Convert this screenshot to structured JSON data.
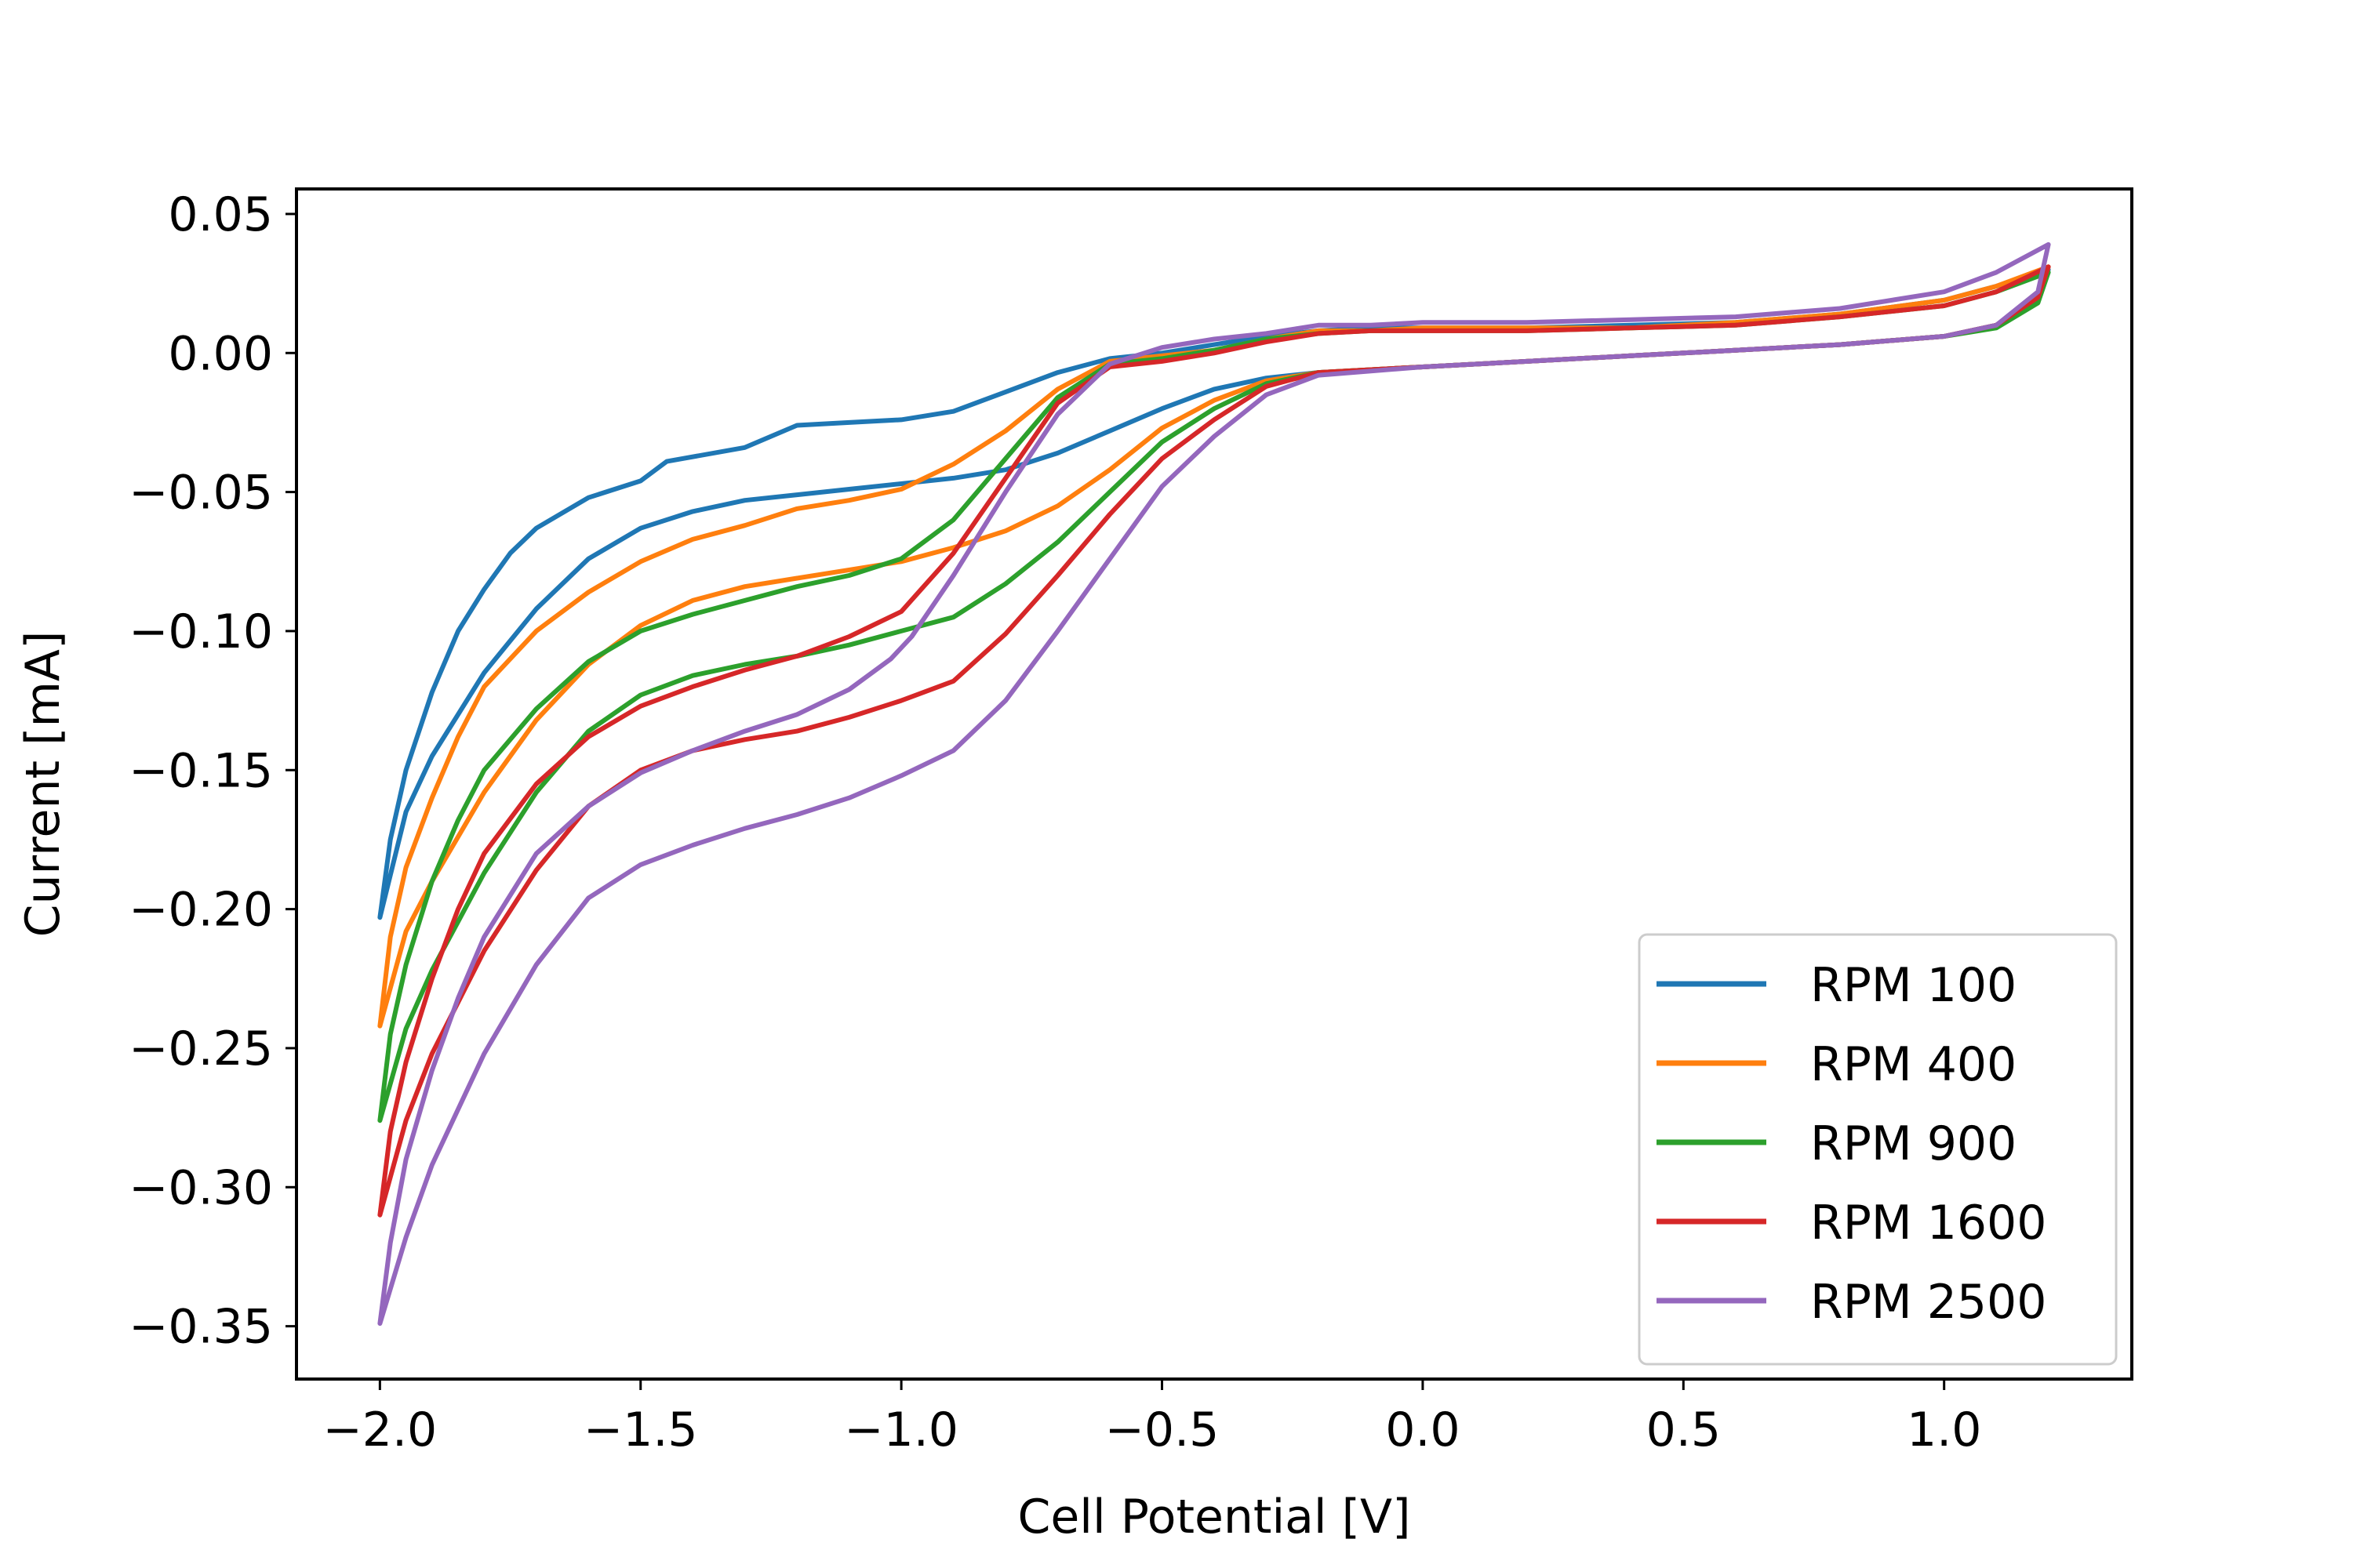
{
  "chart_data": {
    "type": "line",
    "title": "",
    "xlabel": "Cell Potential [V]",
    "ylabel": "Current [mA]",
    "xlim": [
      -2.16,
      1.36
    ],
    "ylim": [
      -0.369,
      0.059
    ],
    "xticks": [
      -2.0,
      -1.5,
      -1.0,
      -0.5,
      0.0,
      0.5,
      1.0
    ],
    "xtick_labels": [
      "−2.0",
      "−1.5",
      "−1.0",
      "−0.5",
      "0.0",
      "0.5",
      "1.0"
    ],
    "yticks": [
      0.05,
      0.0,
      -0.05,
      -0.1,
      -0.15,
      -0.2,
      -0.25,
      -0.3,
      -0.35
    ],
    "ytick_labels": [
      "0.05",
      "0.00",
      "−0.05",
      "−0.10",
      "−0.15",
      "−0.20",
      "−0.25",
      "−0.30",
      "−0.35"
    ],
    "grid": false,
    "legend_position": "lower-right",
    "series": [
      {
        "name": "RPM 100",
        "color": "#1f77b4",
        "forward": [
          [
            -2.0,
            -0.203
          ],
          [
            -1.98,
            -0.175
          ],
          [
            -1.95,
            -0.15
          ],
          [
            -1.9,
            -0.122
          ],
          [
            -1.85,
            -0.1
          ],
          [
            -1.8,
            -0.085
          ],
          [
            -1.75,
            -0.072
          ],
          [
            -1.7,
            -0.063
          ],
          [
            -1.6,
            -0.052
          ],
          [
            -1.5,
            -0.046
          ],
          [
            -1.45,
            -0.039
          ],
          [
            -1.3,
            -0.034
          ],
          [
            -1.2,
            -0.026
          ],
          [
            -1.1,
            -0.025
          ],
          [
            -1.0,
            -0.024
          ],
          [
            -0.9,
            -0.021
          ],
          [
            -0.8,
            -0.014
          ],
          [
            -0.7,
            -0.007
          ],
          [
            -0.6,
            -0.002
          ],
          [
            -0.5,
            0.0
          ],
          [
            -0.4,
            0.003
          ],
          [
            -0.3,
            0.006
          ],
          [
            -0.2,
            0.008
          ],
          [
            -0.1,
            0.009
          ],
          [
            0.0,
            0.009
          ],
          [
            0.2,
            0.009
          ],
          [
            0.4,
            0.01
          ],
          [
            0.6,
            0.011
          ],
          [
            0.8,
            0.014
          ],
          [
            1.0,
            0.019
          ],
          [
            1.1,
            0.024
          ],
          [
            1.2,
            0.03
          ]
        ],
        "reverse": [
          [
            1.2,
            0.03
          ],
          [
            1.18,
            0.02
          ],
          [
            1.1,
            0.01
          ],
          [
            1.0,
            0.006
          ],
          [
            0.8,
            0.003
          ],
          [
            0.6,
            0.001
          ],
          [
            0.4,
            -0.001
          ],
          [
            0.2,
            -0.003
          ],
          [
            0.0,
            -0.005
          ],
          [
            -0.2,
            -0.007
          ],
          [
            -0.3,
            -0.009
          ],
          [
            -0.4,
            -0.013
          ],
          [
            -0.5,
            -0.02
          ],
          [
            -0.6,
            -0.028
          ],
          [
            -0.7,
            -0.036
          ],
          [
            -0.8,
            -0.042
          ],
          [
            -0.9,
            -0.045
          ],
          [
            -1.0,
            -0.047
          ],
          [
            -1.1,
            -0.049
          ],
          [
            -1.2,
            -0.051
          ],
          [
            -1.3,
            -0.053
          ],
          [
            -1.4,
            -0.057
          ],
          [
            -1.5,
            -0.063
          ],
          [
            -1.6,
            -0.074
          ],
          [
            -1.7,
            -0.092
          ],
          [
            -1.8,
            -0.115
          ],
          [
            -1.9,
            -0.145
          ],
          [
            -1.95,
            -0.165
          ],
          [
            -2.0,
            -0.203
          ]
        ]
      },
      {
        "name": "RPM 400",
        "color": "#ff7f0e",
        "forward": [
          [
            -2.0,
            -0.242
          ],
          [
            -1.98,
            -0.21
          ],
          [
            -1.95,
            -0.185
          ],
          [
            -1.9,
            -0.16
          ],
          [
            -1.85,
            -0.138
          ],
          [
            -1.8,
            -0.12
          ],
          [
            -1.7,
            -0.1
          ],
          [
            -1.6,
            -0.086
          ],
          [
            -1.5,
            -0.075
          ],
          [
            -1.4,
            -0.067
          ],
          [
            -1.3,
            -0.062
          ],
          [
            -1.2,
            -0.056
          ],
          [
            -1.1,
            -0.053
          ],
          [
            -1.0,
            -0.049
          ],
          [
            -0.9,
            -0.04
          ],
          [
            -0.8,
            -0.028
          ],
          [
            -0.7,
            -0.013
          ],
          [
            -0.6,
            -0.003
          ],
          [
            -0.5,
            -0.001
          ],
          [
            -0.4,
            0.001
          ],
          [
            -0.3,
            0.005
          ],
          [
            -0.2,
            0.008
          ],
          [
            -0.1,
            0.008
          ],
          [
            0.0,
            0.009
          ],
          [
            0.2,
            0.009
          ],
          [
            0.4,
            0.009
          ],
          [
            0.6,
            0.011
          ],
          [
            0.8,
            0.014
          ],
          [
            1.0,
            0.019
          ],
          [
            1.1,
            0.024
          ],
          [
            1.2,
            0.031
          ]
        ],
        "reverse": [
          [
            1.2,
            0.031
          ],
          [
            1.18,
            0.02
          ],
          [
            1.1,
            0.01
          ],
          [
            1.0,
            0.006
          ],
          [
            0.8,
            0.003
          ],
          [
            0.6,
            0.001
          ],
          [
            0.4,
            -0.001
          ],
          [
            0.2,
            -0.003
          ],
          [
            0.0,
            -0.005
          ],
          [
            -0.2,
            -0.007
          ],
          [
            -0.3,
            -0.01
          ],
          [
            -0.4,
            -0.017
          ],
          [
            -0.5,
            -0.027
          ],
          [
            -0.6,
            -0.042
          ],
          [
            -0.7,
            -0.055
          ],
          [
            -0.8,
            -0.064
          ],
          [
            -0.9,
            -0.07
          ],
          [
            -1.0,
            -0.075
          ],
          [
            -1.1,
            -0.078
          ],
          [
            -1.2,
            -0.081
          ],
          [
            -1.3,
            -0.084
          ],
          [
            -1.4,
            -0.089
          ],
          [
            -1.5,
            -0.098
          ],
          [
            -1.6,
            -0.112
          ],
          [
            -1.7,
            -0.132
          ],
          [
            -1.8,
            -0.158
          ],
          [
            -1.9,
            -0.19
          ],
          [
            -1.95,
            -0.208
          ],
          [
            -2.0,
            -0.242
          ]
        ]
      },
      {
        "name": "RPM 900",
        "color": "#2ca02c",
        "forward": [
          [
            -2.0,
            -0.276
          ],
          [
            -1.98,
            -0.245
          ],
          [
            -1.95,
            -0.22
          ],
          [
            -1.9,
            -0.19
          ],
          [
            -1.85,
            -0.168
          ],
          [
            -1.8,
            -0.15
          ],
          [
            -1.7,
            -0.128
          ],
          [
            -1.6,
            -0.111
          ],
          [
            -1.5,
            -0.1
          ],
          [
            -1.4,
            -0.094
          ],
          [
            -1.3,
            -0.089
          ],
          [
            -1.2,
            -0.084
          ],
          [
            -1.1,
            -0.08
          ],
          [
            -1.0,
            -0.074
          ],
          [
            -0.9,
            -0.06
          ],
          [
            -0.8,
            -0.038
          ],
          [
            -0.7,
            -0.016
          ],
          [
            -0.6,
            -0.004
          ],
          [
            -0.5,
            -0.002
          ],
          [
            -0.4,
            0.001
          ],
          [
            -0.3,
            0.005
          ],
          [
            -0.2,
            0.007
          ],
          [
            -0.1,
            0.008
          ],
          [
            0.0,
            0.008
          ],
          [
            0.2,
            0.008
          ],
          [
            0.4,
            0.009
          ],
          [
            0.6,
            0.01
          ],
          [
            0.8,
            0.013
          ],
          [
            1.0,
            0.017
          ],
          [
            1.1,
            0.022
          ],
          [
            1.2,
            0.029
          ]
        ],
        "reverse": [
          [
            1.2,
            0.029
          ],
          [
            1.18,
            0.018
          ],
          [
            1.1,
            0.009
          ],
          [
            1.0,
            0.006
          ],
          [
            0.8,
            0.003
          ],
          [
            0.6,
            0.001
          ],
          [
            0.4,
            -0.001
          ],
          [
            0.2,
            -0.003
          ],
          [
            0.0,
            -0.005
          ],
          [
            -0.2,
            -0.007
          ],
          [
            -0.3,
            -0.011
          ],
          [
            -0.4,
            -0.02
          ],
          [
            -0.5,
            -0.032
          ],
          [
            -0.6,
            -0.05
          ],
          [
            -0.7,
            -0.068
          ],
          [
            -0.8,
            -0.083
          ],
          [
            -0.9,
            -0.095
          ],
          [
            -1.0,
            -0.1
          ],
          [
            -1.1,
            -0.105
          ],
          [
            -1.2,
            -0.109
          ],
          [
            -1.3,
            -0.112
          ],
          [
            -1.4,
            -0.116
          ],
          [
            -1.5,
            -0.123
          ],
          [
            -1.6,
            -0.136
          ],
          [
            -1.7,
            -0.158
          ],
          [
            -1.8,
            -0.187
          ],
          [
            -1.9,
            -0.222
          ],
          [
            -1.95,
            -0.243
          ],
          [
            -2.0,
            -0.276
          ]
        ]
      },
      {
        "name": "RPM 1600",
        "color": "#d62728",
        "forward": [
          [
            -2.0,
            -0.31
          ],
          [
            -1.98,
            -0.28
          ],
          [
            -1.95,
            -0.255
          ],
          [
            -1.9,
            -0.225
          ],
          [
            -1.85,
            -0.2
          ],
          [
            -1.8,
            -0.18
          ],
          [
            -1.7,
            -0.155
          ],
          [
            -1.6,
            -0.138
          ],
          [
            -1.5,
            -0.127
          ],
          [
            -1.4,
            -0.12
          ],
          [
            -1.3,
            -0.114
          ],
          [
            -1.2,
            -0.109
          ],
          [
            -1.1,
            -0.102
          ],
          [
            -1.0,
            -0.093
          ],
          [
            -0.9,
            -0.072
          ],
          [
            -0.8,
            -0.045
          ],
          [
            -0.7,
            -0.018
          ],
          [
            -0.6,
            -0.005
          ],
          [
            -0.5,
            -0.003
          ],
          [
            -0.4,
            0.0
          ],
          [
            -0.3,
            0.004
          ],
          [
            -0.2,
            0.007
          ],
          [
            -0.1,
            0.008
          ],
          [
            0.0,
            0.008
          ],
          [
            0.2,
            0.008
          ],
          [
            0.4,
            0.009
          ],
          [
            0.6,
            0.01
          ],
          [
            0.8,
            0.013
          ],
          [
            1.0,
            0.017
          ],
          [
            1.1,
            0.022
          ],
          [
            1.2,
            0.031
          ]
        ],
        "reverse": [
          [
            1.2,
            0.031
          ],
          [
            1.18,
            0.02
          ],
          [
            1.1,
            0.01
          ],
          [
            1.0,
            0.006
          ],
          [
            0.8,
            0.003
          ],
          [
            0.6,
            0.001
          ],
          [
            0.4,
            -0.001
          ],
          [
            0.2,
            -0.003
          ],
          [
            0.0,
            -0.005
          ],
          [
            -0.2,
            -0.007
          ],
          [
            -0.3,
            -0.012
          ],
          [
            -0.4,
            -0.024
          ],
          [
            -0.5,
            -0.038
          ],
          [
            -0.6,
            -0.058
          ],
          [
            -0.7,
            -0.08
          ],
          [
            -0.8,
            -0.101
          ],
          [
            -0.9,
            -0.118
          ],
          [
            -1.0,
            -0.125
          ],
          [
            -1.1,
            -0.131
          ],
          [
            -1.2,
            -0.136
          ],
          [
            -1.3,
            -0.139
          ],
          [
            -1.4,
            -0.143
          ],
          [
            -1.5,
            -0.15
          ],
          [
            -1.6,
            -0.163
          ],
          [
            -1.7,
            -0.186
          ],
          [
            -1.8,
            -0.215
          ],
          [
            -1.9,
            -0.252
          ],
          [
            -1.95,
            -0.276
          ],
          [
            -2.0,
            -0.31
          ]
        ]
      },
      {
        "name": "RPM 2500",
        "color": "#9467bd",
        "forward": [
          [
            -2.0,
            -0.349
          ],
          [
            -1.98,
            -0.32
          ],
          [
            -1.95,
            -0.29
          ],
          [
            -1.9,
            -0.258
          ],
          [
            -1.85,
            -0.232
          ],
          [
            -1.8,
            -0.21
          ],
          [
            -1.7,
            -0.18
          ],
          [
            -1.6,
            -0.163
          ],
          [
            -1.5,
            -0.151
          ],
          [
            -1.4,
            -0.143
          ],
          [
            -1.3,
            -0.136
          ],
          [
            -1.2,
            -0.13
          ],
          [
            -1.1,
            -0.121
          ],
          [
            -1.02,
            -0.11
          ],
          [
            -0.98,
            -0.102
          ],
          [
            -0.9,
            -0.08
          ],
          [
            -0.8,
            -0.05
          ],
          [
            -0.7,
            -0.022
          ],
          [
            -0.6,
            -0.004
          ],
          [
            -0.5,
            0.002
          ],
          [
            -0.4,
            0.005
          ],
          [
            -0.3,
            0.007
          ],
          [
            -0.2,
            0.01
          ],
          [
            -0.1,
            0.01
          ],
          [
            0.0,
            0.011
          ],
          [
            0.2,
            0.011
          ],
          [
            0.4,
            0.012
          ],
          [
            0.6,
            0.013
          ],
          [
            0.8,
            0.016
          ],
          [
            1.0,
            0.022
          ],
          [
            1.1,
            0.029
          ],
          [
            1.2,
            0.039
          ]
        ],
        "reverse": [
          [
            1.2,
            0.039
          ],
          [
            1.18,
            0.022
          ],
          [
            1.1,
            0.01
          ],
          [
            1.0,
            0.006
          ],
          [
            0.8,
            0.003
          ],
          [
            0.6,
            0.001
          ],
          [
            0.4,
            -0.001
          ],
          [
            0.2,
            -0.003
          ],
          [
            0.0,
            -0.005
          ],
          [
            -0.2,
            -0.008
          ],
          [
            -0.3,
            -0.015
          ],
          [
            -0.4,
            -0.03
          ],
          [
            -0.5,
            -0.048
          ],
          [
            -0.6,
            -0.074
          ],
          [
            -0.7,
            -0.1
          ],
          [
            -0.8,
            -0.125
          ],
          [
            -0.9,
            -0.143
          ],
          [
            -1.0,
            -0.152
          ],
          [
            -1.1,
            -0.16
          ],
          [
            -1.2,
            -0.166
          ],
          [
            -1.3,
            -0.171
          ],
          [
            -1.4,
            -0.177
          ],
          [
            -1.5,
            -0.184
          ],
          [
            -1.6,
            -0.196
          ],
          [
            -1.7,
            -0.22
          ],
          [
            -1.8,
            -0.252
          ],
          [
            -1.9,
            -0.292
          ],
          [
            -1.95,
            -0.318
          ],
          [
            -2.0,
            -0.349
          ]
        ]
      }
    ]
  }
}
